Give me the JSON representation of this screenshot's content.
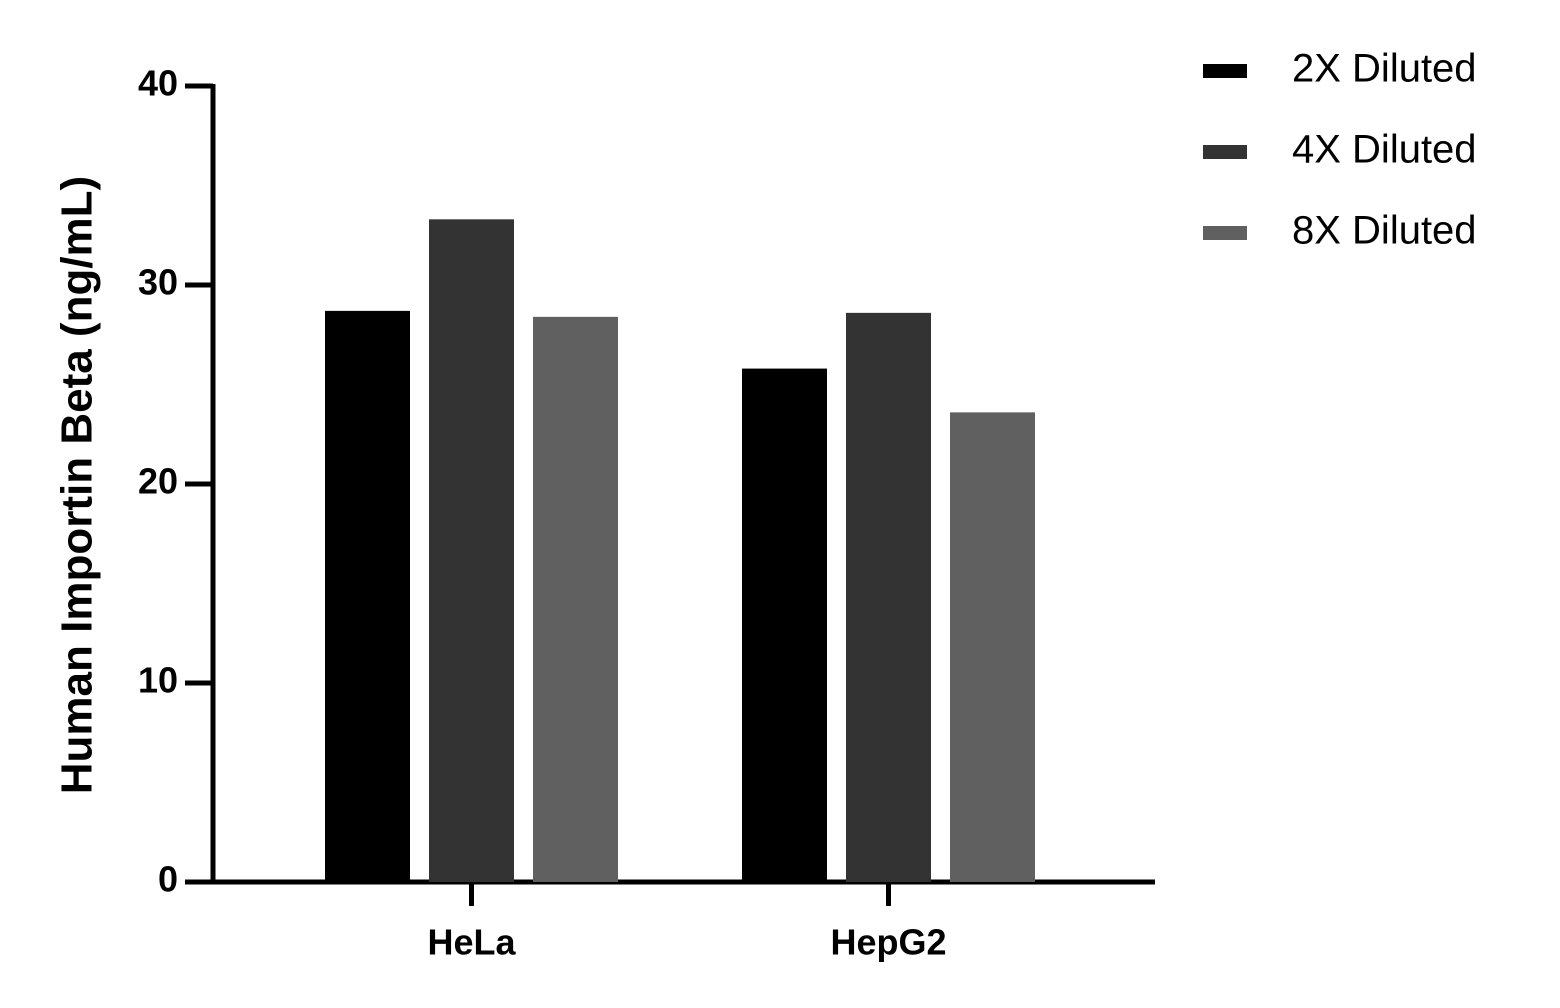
{
  "chart_data": {
    "type": "bar",
    "y_label": "Human Importin Beta (ng/mL)",
    "categories": [
      "HeLa",
      "HepG2"
    ],
    "series": [
      {
        "name": "2X Diluted",
        "color": "#000000",
        "values": [
          28.7,
          25.8
        ]
      },
      {
        "name": "4X Diluted",
        "color": "#333333",
        "values": [
          33.3,
          28.6
        ]
      },
      {
        "name": "8X Diluted",
        "color": "#606060",
        "values": [
          28.4,
          23.6
        ]
      }
    ],
    "ylim": [
      0,
      40
    ],
    "yticks": [
      0,
      10,
      20,
      30,
      40
    ],
    "grid": false,
    "legend": "right"
  }
}
